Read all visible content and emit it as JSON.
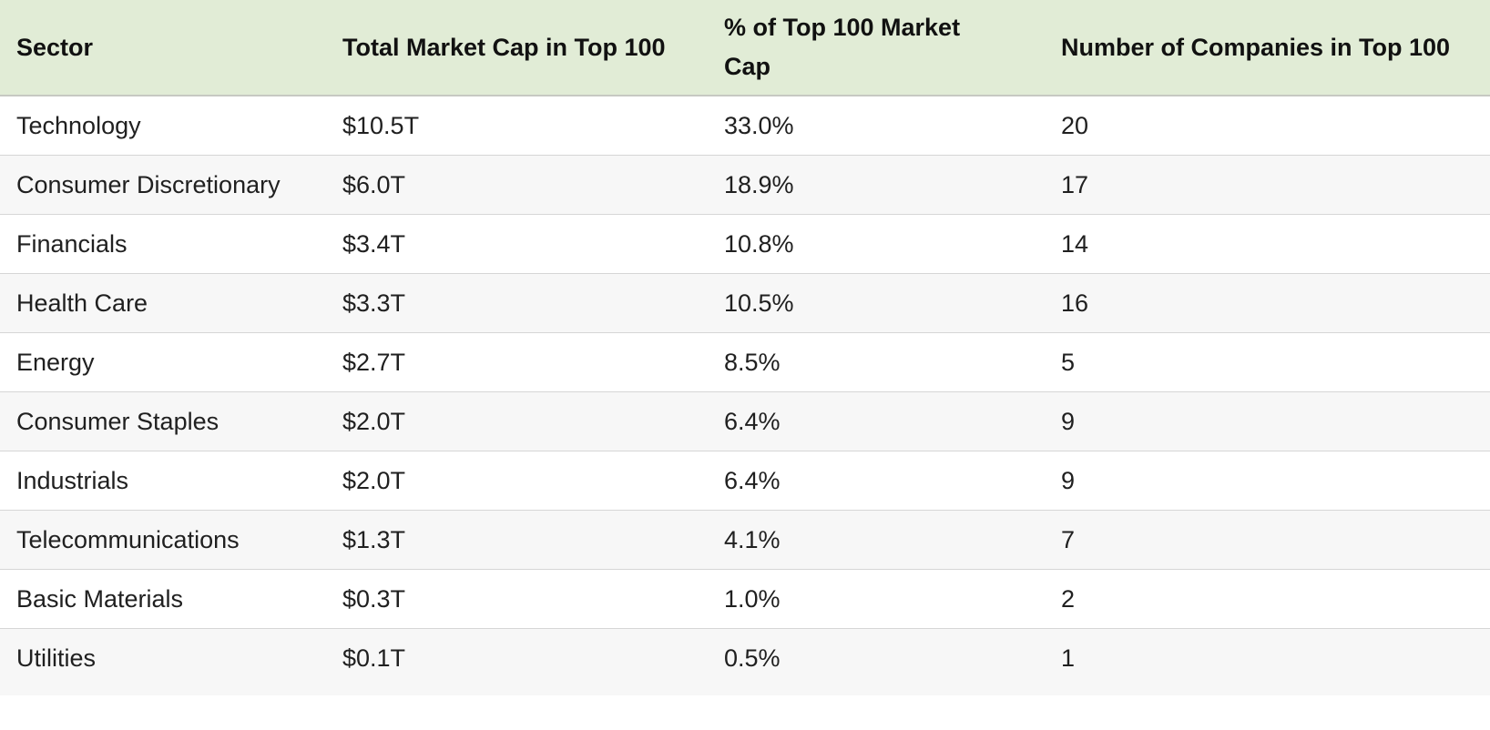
{
  "table": {
    "columns": [
      {
        "key": "sector",
        "label": "Sector"
      },
      {
        "key": "market_cap",
        "label": "Total Market Cap in Top 100"
      },
      {
        "key": "pct",
        "label": "% of Top 100 Market Cap"
      },
      {
        "key": "companies",
        "label": "Number of Companies in Top 100"
      }
    ],
    "rows": [
      {
        "sector": "Technology",
        "market_cap": "$10.5T",
        "pct": "33.0%",
        "companies": "20"
      },
      {
        "sector": "Consumer Discretionary",
        "market_cap": "$6.0T",
        "pct": "18.9%",
        "companies": "17"
      },
      {
        "sector": "Financials",
        "market_cap": "$3.4T",
        "pct": "10.8%",
        "companies": "14"
      },
      {
        "sector": "Health Care",
        "market_cap": "$3.3T",
        "pct": "10.5%",
        "companies": "16"
      },
      {
        "sector": "Energy",
        "market_cap": "$2.7T",
        "pct": "8.5%",
        "companies": "5"
      },
      {
        "sector": "Consumer Staples",
        "market_cap": "$2.0T",
        "pct": "6.4%",
        "companies": "9"
      },
      {
        "sector": "Industrials",
        "market_cap": "$2.0T",
        "pct": "6.4%",
        "companies": "9"
      },
      {
        "sector": "Telecommunications",
        "market_cap": "$1.3T",
        "pct": "4.1%",
        "companies": "7"
      },
      {
        "sector": "Basic Materials",
        "market_cap": "$0.3T",
        "pct": "1.0%",
        "companies": "2"
      },
      {
        "sector": "Utilities",
        "market_cap": "$0.1T",
        "pct": "0.5%",
        "companies": "1"
      }
    ]
  },
  "colors": {
    "header_background": "#e1ecd6",
    "header_border": "#c6c9c2",
    "row_border": "#d6d6d6",
    "stripe_background": "#f7f7f7",
    "text": "#202020"
  },
  "chart_data": {
    "type": "table",
    "title": "",
    "categories": [
      "Technology",
      "Consumer Discretionary",
      "Financials",
      "Health Care",
      "Energy",
      "Consumer Staples",
      "Industrials",
      "Telecommunications",
      "Basic Materials",
      "Utilities"
    ],
    "series": [
      {
        "name": "Total Market Cap in Top 100 ($T)",
        "values": [
          10.5,
          6.0,
          3.4,
          3.3,
          2.7,
          2.0,
          2.0,
          1.3,
          0.3,
          0.1
        ]
      },
      {
        "name": "% of Top 100 Market Cap",
        "values": [
          33.0,
          18.9,
          10.8,
          10.5,
          8.5,
          6.4,
          6.4,
          4.1,
          1.0,
          0.5
        ]
      },
      {
        "name": "Number of Companies in Top 100",
        "values": [
          20,
          17,
          14,
          16,
          5,
          9,
          9,
          7,
          2,
          1
        ]
      }
    ]
  }
}
